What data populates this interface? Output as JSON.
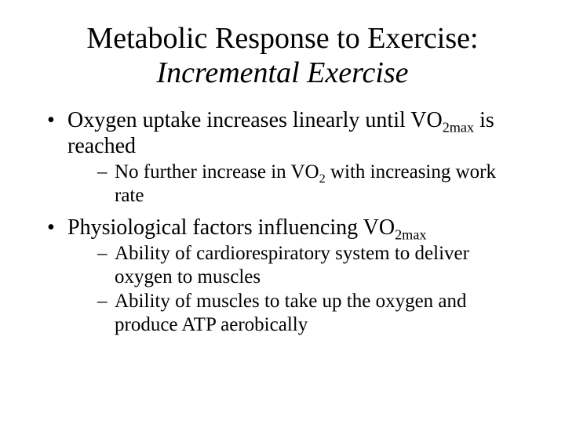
{
  "colors": {
    "background": "#ffffff",
    "text": "#000000"
  },
  "typography": {
    "font_family": "Times New Roman",
    "title_fontsize": 38,
    "bullet_fontsize": 28,
    "subbullet_fontsize": 25
  },
  "title": {
    "line1": "Metabolic Response to Exercise:",
    "line2": "Incremental Exercise",
    "line2_italic": true
  },
  "bullets": [
    {
      "text_pre": "Oxygen uptake increases linearly until VO",
      "sub": "2max",
      "text_post": " is reached",
      "subitems": [
        {
          "text_pre": "No further increase in VO",
          "sub": "2",
          "text_post": " with increasing work rate"
        }
      ]
    },
    {
      "text_pre": "Physiological factors influencing VO",
      "sub": "2max",
      "text_post": "",
      "subitems": [
        {
          "text_pre": "Ability of cardiorespiratory system to deliver oxygen to muscles",
          "sub": "",
          "text_post": ""
        },
        {
          "text_pre": "Ability of muscles to take up the oxygen and produce ATP aerobically",
          "sub": "",
          "text_post": ""
        }
      ]
    }
  ]
}
